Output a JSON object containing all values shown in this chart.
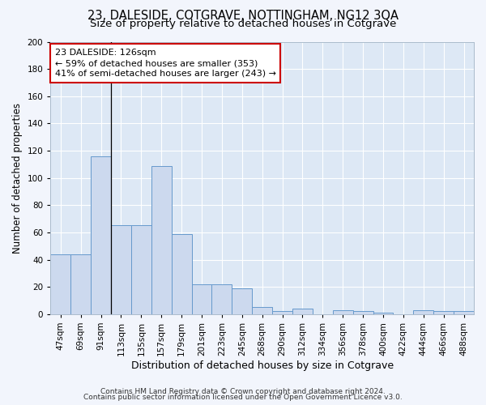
{
  "title": "23, DALESIDE, COTGRAVE, NOTTINGHAM, NG12 3QA",
  "subtitle": "Size of property relative to detached houses in Cotgrave",
  "xlabel": "Distribution of detached houses by size in Cotgrave",
  "ylabel": "Number of detached properties",
  "categories": [
    "47sqm",
    "69sqm",
    "91sqm",
    "113sqm",
    "135sqm",
    "157sqm",
    "179sqm",
    "201sqm",
    "223sqm",
    "245sqm",
    "268sqm",
    "290sqm",
    "312sqm",
    "334sqm",
    "356sqm",
    "378sqm",
    "400sqm",
    "422sqm",
    "444sqm",
    "466sqm",
    "488sqm"
  ],
  "values": [
    44,
    44,
    116,
    65,
    65,
    109,
    59,
    22,
    22,
    19,
    5,
    2,
    4,
    0,
    3,
    2,
    1,
    0,
    3,
    2,
    2
  ],
  "bar_color": "#ccd9ee",
  "bar_edge_color": "#6699cc",
  "background_color": "#dde8f5",
  "grid_color": "#ffffff",
  "annotation_line1": "23 DALESIDE: 126sqm",
  "annotation_line2": "← 59% of detached houses are smaller (353)",
  "annotation_line3": "41% of semi-detached houses are larger (243) →",
  "annotation_box_color": "#ffffff",
  "annotation_box_edge": "#cc0000",
  "vline_x": 3.0,
  "ylim": [
    0,
    200
  ],
  "yticks": [
    0,
    20,
    40,
    60,
    80,
    100,
    120,
    140,
    160,
    180,
    200
  ],
  "footer_line1": "Contains HM Land Registry data © Crown copyright and database right 2024.",
  "footer_line2": "Contains public sector information licensed under the Open Government Licence v3.0.",
  "title_fontsize": 10.5,
  "subtitle_fontsize": 9.5,
  "xlabel_fontsize": 9,
  "ylabel_fontsize": 8.5,
  "tick_fontsize": 7.5,
  "annotation_fontsize": 8,
  "footer_fontsize": 6.5
}
